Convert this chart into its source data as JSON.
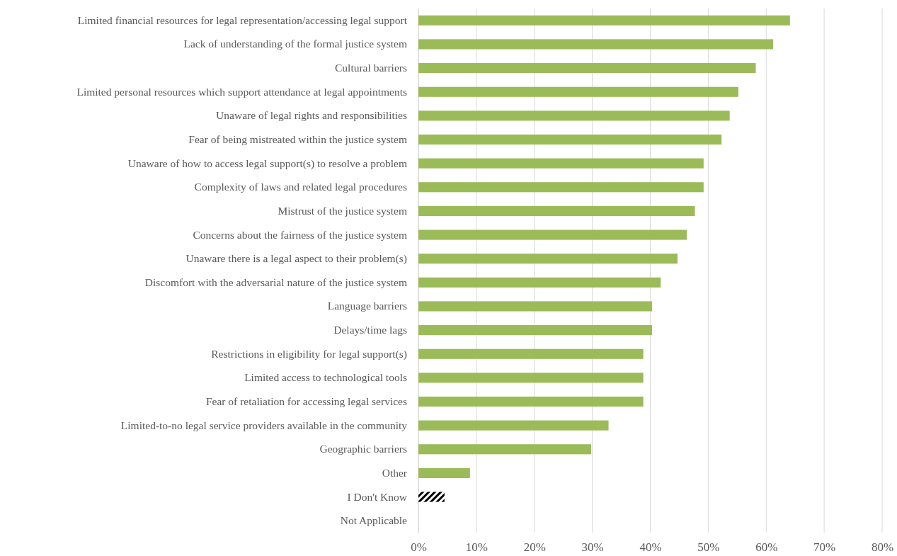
{
  "chart_data": {
    "type": "bar",
    "orientation": "horizontal",
    "categories": [
      "Limited financial resources for legal representation/accessing legal support",
      "Lack of understanding of the formal justice system",
      "Cultural barriers",
      "Limited personal resources which support attendance at legal appointments",
      "Unaware of legal rights and responsibilities",
      "Fear of being mistreated within the justice system",
      "Unaware of how to access legal support(s) to resolve a problem",
      "Complexity of laws and related legal procedures",
      "Mistrust of the justice system",
      "Concerns about the fairness of the justice system",
      "Unaware there is a legal aspect to their problem(s)",
      "Discomfort with the adversarial nature of the justice system",
      "Language barriers",
      "Delays/time lags",
      "Restrictions in eligibility for legal support(s)",
      "Limited access to technological tools",
      "Fear of retaliation for accessing legal services",
      "Limited-to-no legal service providers available in the community",
      "Geographic barriers",
      "Other",
      "I Don't Know",
      "Not Applicable"
    ],
    "values": [
      64.1,
      61.2,
      58.2,
      55.2,
      53.7,
      52.3,
      49.2,
      49.2,
      47.7,
      46.3,
      44.7,
      41.8,
      40.3,
      40.3,
      38.8,
      38.8,
      38.8,
      32.8,
      29.8,
      8.9,
      4.5,
      0
    ],
    "colors": [
      "#9bbb59",
      "#9bbb59",
      "#9bbb59",
      "#9bbb59",
      "#9bbb59",
      "#9bbb59",
      "#9bbb59",
      "#9bbb59",
      "#9bbb59",
      "#9bbb59",
      "#9bbb59",
      "#9bbb59",
      "#9bbb59",
      "#9bbb59",
      "#9bbb59",
      "#9bbb59",
      "#9bbb59",
      "#9bbb59",
      "#9bbb59",
      "#9bbb59",
      "#000000",
      "#9bbb59"
    ],
    "xlim": [
      0,
      80
    ],
    "xticks": [
      {
        "value": 0,
        "label": "0%"
      },
      {
        "value": 10,
        "label": "10%"
      },
      {
        "value": 20,
        "label": "20%"
      },
      {
        "value": 30,
        "label": "30%"
      },
      {
        "value": 40,
        "label": "40%"
      },
      {
        "value": 50,
        "label": "50%"
      },
      {
        "value": 60,
        "label": "60%"
      },
      {
        "value": 70,
        "label": "70%"
      },
      {
        "value": 80,
        "label": "80%"
      }
    ],
    "grid": "x"
  }
}
